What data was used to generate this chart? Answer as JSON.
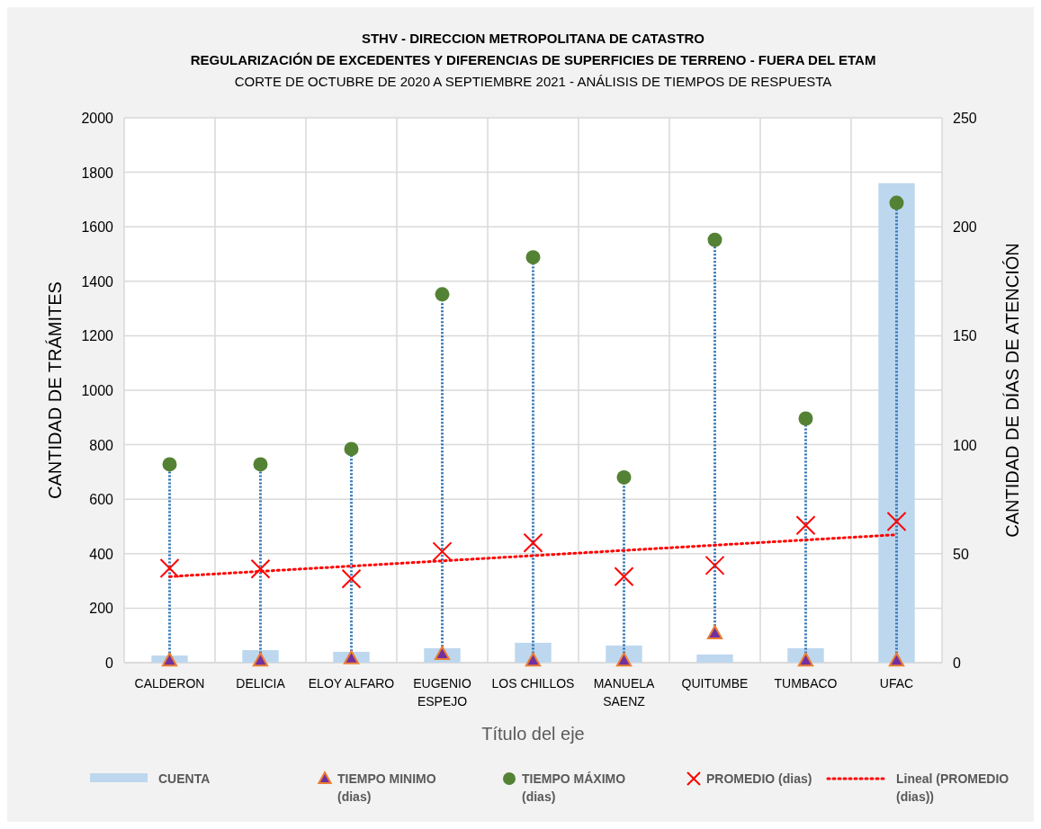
{
  "chart_data": {
    "type": "bar",
    "title": "STHV - DIRECCION METROPOLITANA DE CATASTRO\nREGULARIZACIÓN DE EXCEDENTES Y DIFERENCIAS DE SUPERFICIES DE TERRENO - FUERA DEL ETAM",
    "subtitle": "CORTE DE OCTUBRE DE 2020 A SEPTIEMBRE 2021  - ANÁLISIS DE TIEMPOS DE RESPUESTA",
    "xlabel": "Título del eje",
    "ylabel": "CANTIDAD DE TRÁMITES",
    "y2label": "CANTIDAD DE DÍAS DE ATENCIÓN",
    "categories": [
      "CALDERON",
      "DELICIA",
      "ELOY ALFARO",
      "EUGENIO ESPEJO",
      "LOS CHILLOS",
      "MANUELA SAENZ",
      "QUITUMBE",
      "TUMBACO",
      "UFAC"
    ],
    "series": [
      {
        "name": "CUENTA",
        "color": "#bdd7ee",
        "values": [
          26,
          46,
          40,
          53,
          73,
          63,
          30,
          53,
          1760
        ]
      },
      {
        "name": "TIEMPO MINIMO (dias)",
        "type": "scatter",
        "axis": "y2",
        "marker": "triangle",
        "color": "#7030a0",
        "values": [
          1,
          1,
          2,
          4,
          1,
          1,
          13.5,
          1,
          1
        ]
      },
      {
        "name": "TIEMPO MÁXIMO (dias)",
        "type": "scatter",
        "axis": "y2",
        "marker": "circle",
        "color": "#548235",
        "values": [
          91,
          91,
          98,
          169,
          186,
          85,
          194,
          112,
          211
        ]
      },
      {
        "name": "PROMEDIO (dias)",
        "type": "scatter",
        "axis": "y2",
        "marker": "cross",
        "color": "#ff0000",
        "values": [
          43.3,
          43,
          38.5,
          51,
          55,
          39.5,
          44.6,
          63,
          64.8
        ]
      },
      {
        "name": "Lineal (PROMEDIO (dias))",
        "type": "line",
        "axis": "y2",
        "line_style": "dotted",
        "color": "#ff0000",
        "values": [
          39.5,
          41.9,
          44.3,
          46.7,
          49.1,
          51.5,
          53.9,
          56.3,
          58.7
        ]
      }
    ],
    "ylim": [
      0,
      2000
    ],
    "yticks": [
      0,
      200,
      400,
      600,
      800,
      1000,
      1200,
      1400,
      1600,
      1800,
      2000
    ],
    "y2lim": [
      0,
      250
    ],
    "y2ticks": [
      0,
      50,
      100,
      150,
      200,
      250
    ],
    "grid": true,
    "legend": "bottom"
  }
}
